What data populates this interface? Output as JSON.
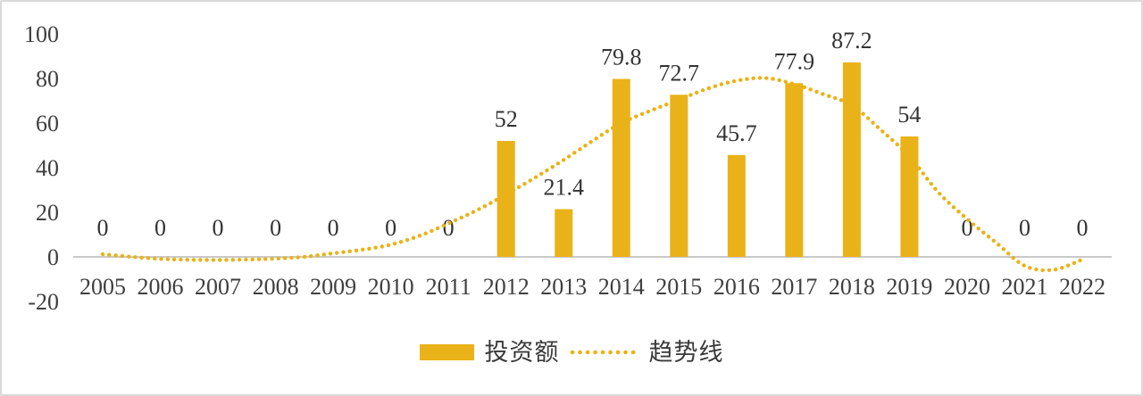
{
  "chart_data": {
    "type": "bar",
    "title": "",
    "xlabel": "",
    "ylabel": "",
    "categories": [
      "2005",
      "2006",
      "2007",
      "2008",
      "2009",
      "2010",
      "2011",
      "2012",
      "2013",
      "2014",
      "2015",
      "2016",
      "2017",
      "2018",
      "2019",
      "2020",
      "2021",
      "2022"
    ],
    "series": [
      {
        "name": "投资额",
        "type": "bar",
        "color": "#E9B218",
        "values": [
          0,
          0,
          0,
          0,
          0,
          0,
          0,
          52,
          21.4,
          79.8,
          72.7,
          45.7,
          77.9,
          87.2,
          54,
          0,
          0,
          0
        ]
      },
      {
        "name": "趋势线",
        "type": "dotted-line",
        "color": "#E9B218",
        "x": [
          0,
          0.5,
          1,
          1.5,
          2,
          2.5,
          3,
          3.5,
          4,
          4.5,
          5,
          5.5,
          6,
          6.5,
          7,
          7.5,
          8,
          8.5,
          9,
          9.5,
          10,
          10.5,
          11,
          11.5,
          12,
          12.5,
          13,
          13.5,
          14,
          14.5,
          15,
          15.5,
          16,
          16.5,
          17
        ],
        "values": [
          1.2,
          0,
          -0.9,
          -1.3,
          -1.4,
          -1.2,
          -0.8,
          0,
          1.6,
          3.2,
          5.5,
          9.5,
          15,
          21,
          28,
          35.5,
          43.5,
          52,
          60,
          65.5,
          70.5,
          75.5,
          79,
          80.2,
          77.5,
          73,
          68,
          57,
          45,
          29,
          17,
          6.5,
          -4,
          -5.8,
          -1.2
        ]
      }
    ],
    "data_labels": [
      "0",
      "0",
      "0",
      "0",
      "0",
      "0",
      "0",
      "52",
      "21.4",
      "79.8",
      "72.7",
      "45.7",
      "77.9",
      "87.2",
      "54",
      "0",
      "0",
      "0"
    ],
    "ylim": [
      -20,
      100
    ],
    "yticks": [
      -20,
      0,
      20,
      40,
      60,
      80,
      100
    ],
    "grid": false,
    "legend_position": "bottom-center",
    "colors": {
      "bar": "#E9B218",
      "trend": "#E9B218",
      "axis_line": "#C9C9C9",
      "tick_text": "#3F3F3F",
      "label_text": "#333333",
      "frame_border": "#D9D9D9"
    }
  }
}
